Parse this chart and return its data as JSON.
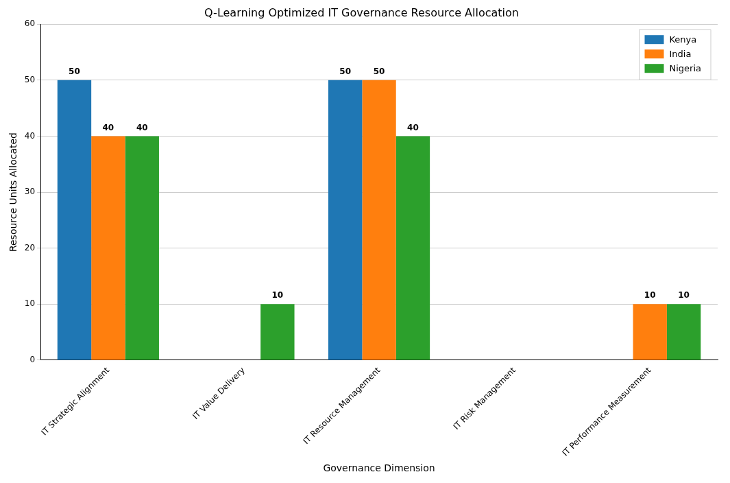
{
  "chart_data": {
    "type": "bar",
    "title": "Q-Learning Optimized IT Governance Resource Allocation",
    "xlabel": "Governance Dimension",
    "ylabel": "Resource Units Allocated",
    "categories": [
      "IT Strategic Alignment",
      "IT Value Delivery",
      "IT Resource Management",
      "IT Risk Management",
      "IT Performance Measurement"
    ],
    "series": [
      {
        "name": "Kenya",
        "color": "#1f77b4",
        "values": [
          50,
          0,
          50,
          0,
          0
        ],
        "value_labels": [
          "50",
          null,
          "50",
          null,
          null
        ]
      },
      {
        "name": "India",
        "color": "#ff7f0e",
        "values": [
          40,
          0,
          50,
          0,
          10
        ],
        "value_labels": [
          "40",
          null,
          "50",
          null,
          "10"
        ]
      },
      {
        "name": "Nigeria",
        "color": "#2ca02c",
        "values": [
          40,
          10,
          40,
          0,
          10
        ],
        "value_labels": [
          "40",
          "10",
          "40",
          null,
          "10"
        ]
      }
    ],
    "ylim": [
      0,
      60
    ],
    "yticks": [
      0,
      10,
      20,
      30,
      40,
      50,
      60
    ],
    "grid": "y",
    "legend": "top right"
  }
}
